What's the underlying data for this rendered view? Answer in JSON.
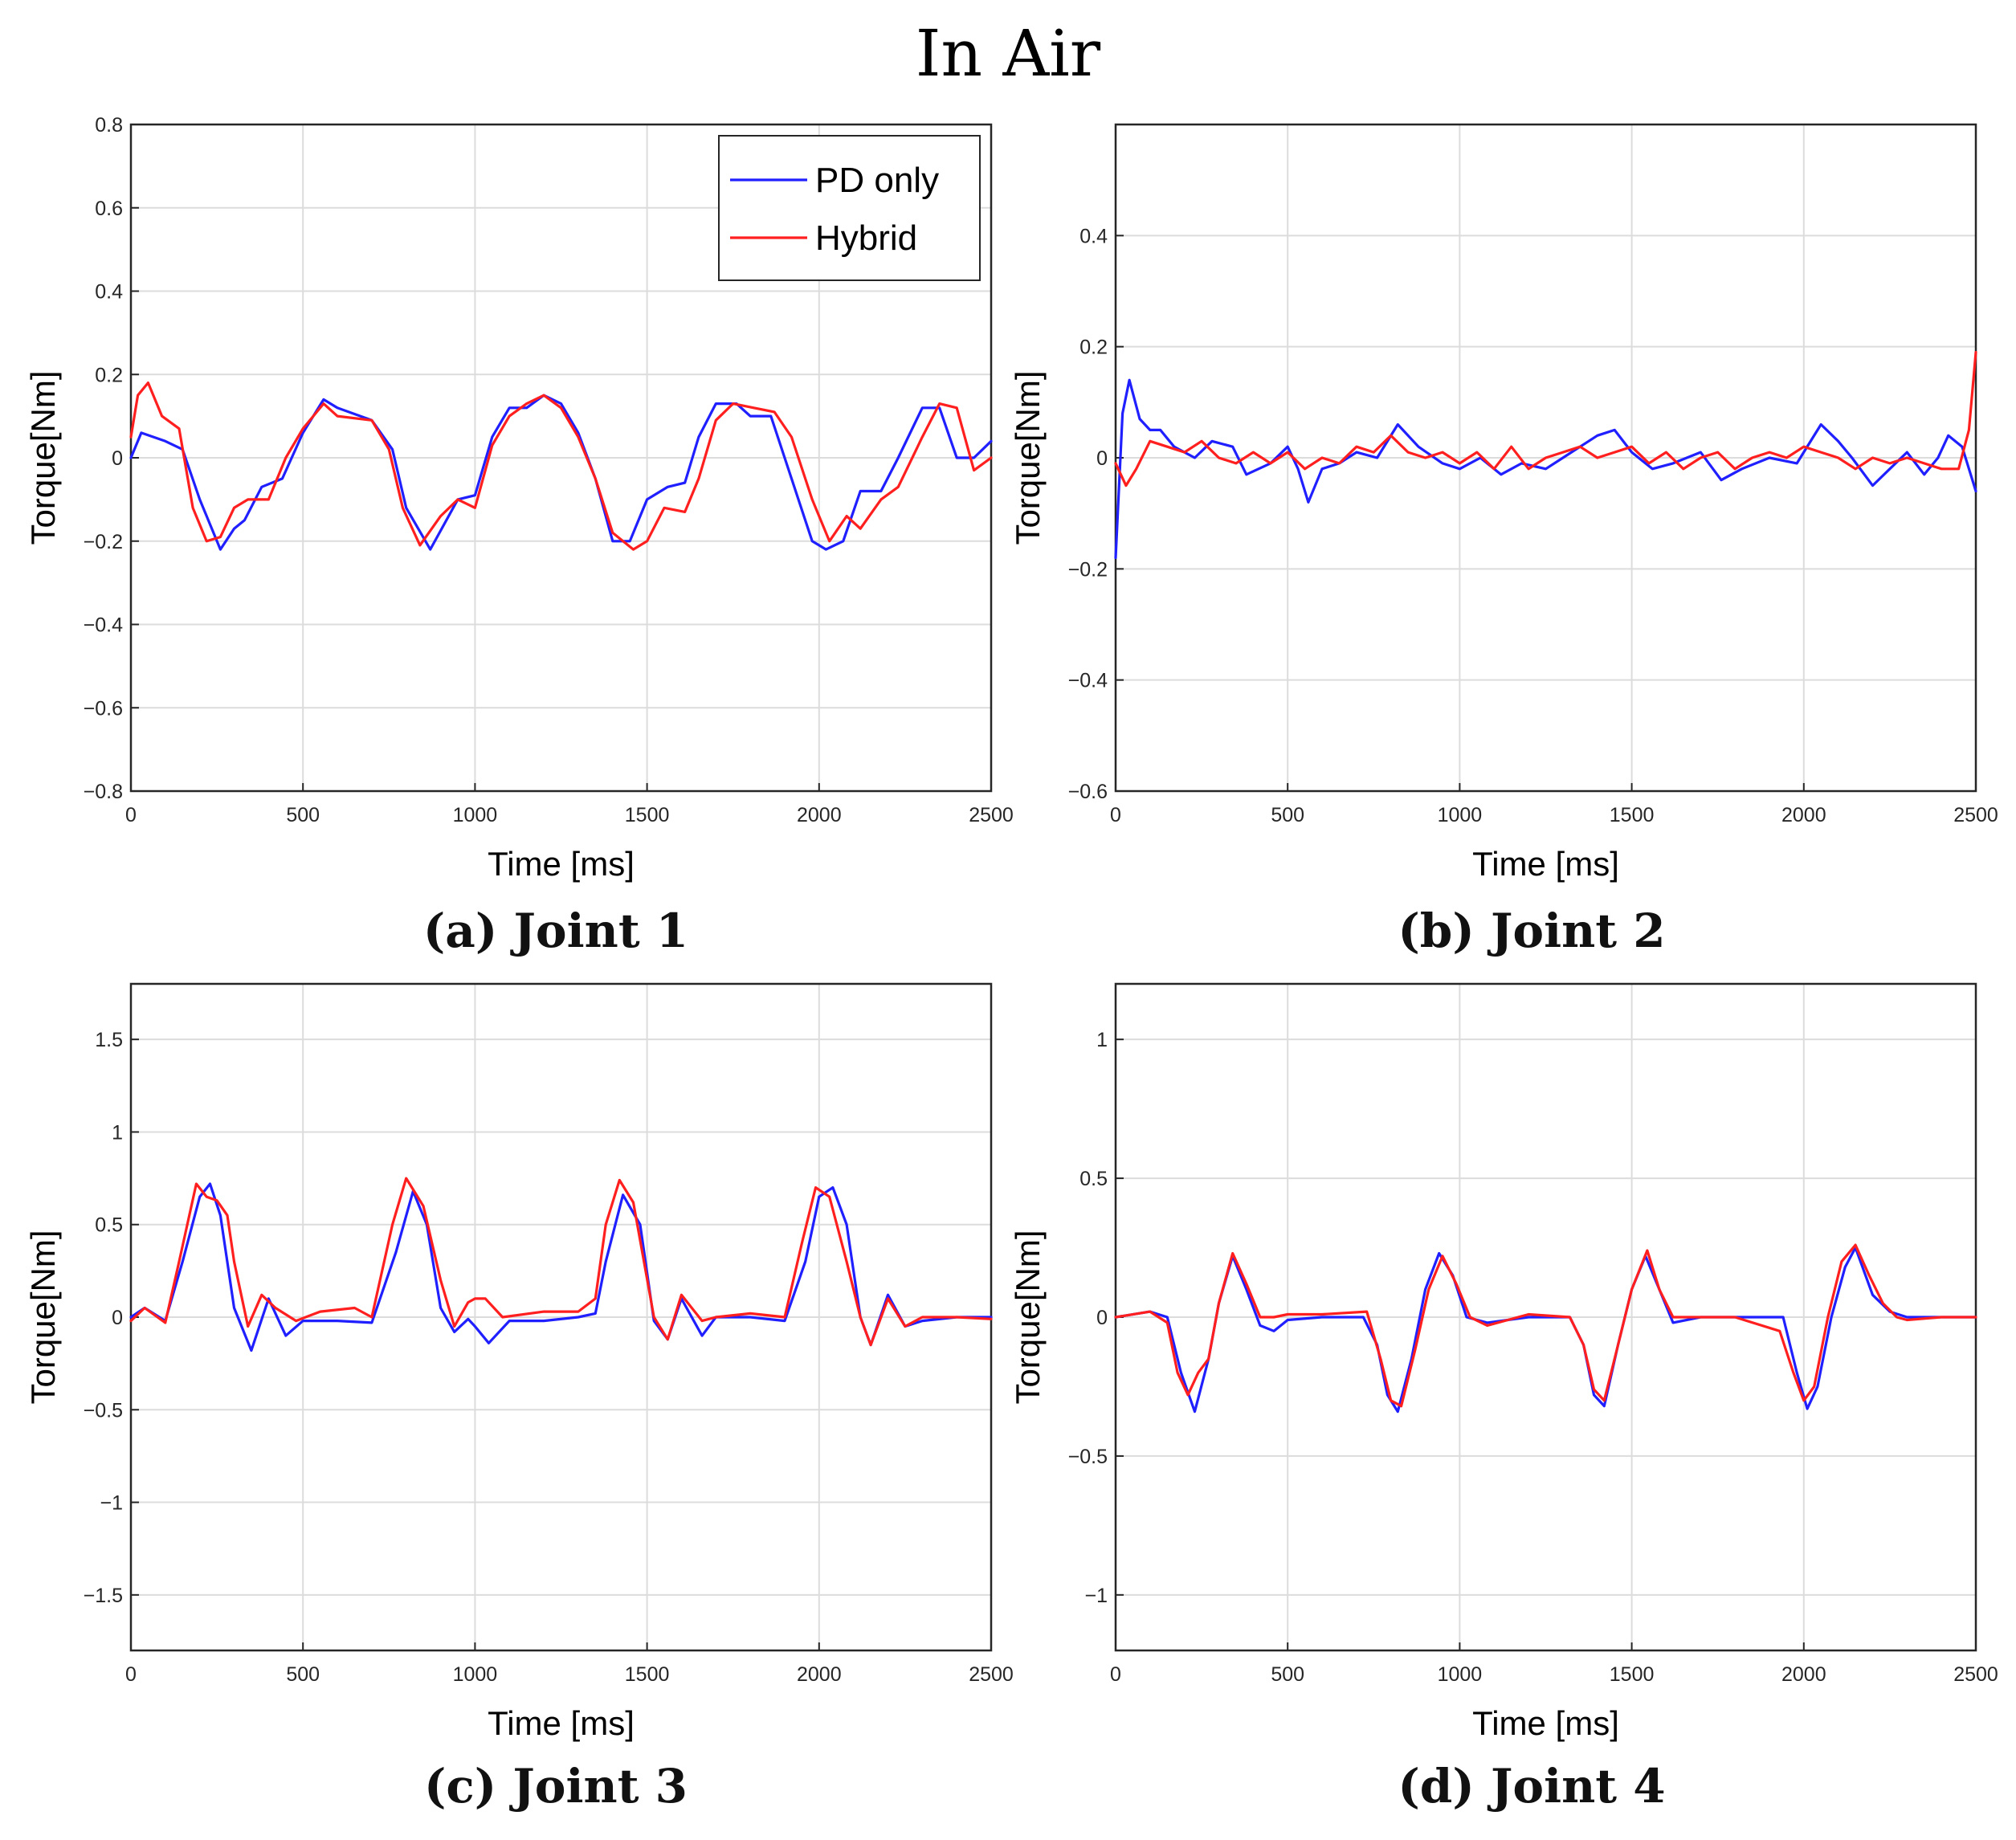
{
  "figure_title": "In Air",
  "captions": [
    "(a) Joint 1",
    "(b) Joint 2",
    "(c) Joint 3",
    "(d) Joint 4"
  ],
  "colors": {
    "pd_only": "#1f1fff",
    "hybrid": "#ff1f1f",
    "grid": "#dcdcdc"
  },
  "chart_data": [
    {
      "type": "line",
      "title": "",
      "caption": "(a) Joint 1",
      "xlabel": "Time [ms]",
      "ylabel": "Torque[Nm]",
      "xlim": [
        0,
        2500
      ],
      "ylim": [
        -0.8,
        0.8
      ],
      "xticks": [
        0,
        500,
        1000,
        1500,
        2000,
        2500
      ],
      "yticks": [
        -0.8,
        -0.6,
        -0.4,
        -0.2,
        0,
        0.2,
        0.4,
        0.6,
        0.8
      ],
      "ytick_labels": [
        "−0.8",
        "−0.6",
        "−0.4",
        "−0.2",
        "0",
        "0.2",
        "0.4",
        "0.6",
        "0.8"
      ],
      "legend": {
        "location": "top-right",
        "entries": [
          "PD only",
          "Hybrid"
        ]
      },
      "series": [
        {
          "name": "PD only",
          "color": "#1f1fff",
          "x": [
            0,
            30,
            100,
            150,
            200,
            260,
            300,
            330,
            380,
            440,
            500,
            560,
            600,
            700,
            760,
            800,
            870,
            950,
            1000,
            1050,
            1100,
            1150,
            1200,
            1250,
            1300,
            1350,
            1400,
            1450,
            1500,
            1560,
            1610,
            1650,
            1700,
            1760,
            1800,
            1860,
            1920,
            1980,
            2020,
            2070,
            2120,
            2180,
            2230,
            2300,
            2350,
            2400,
            2450,
            2500
          ],
          "y": [
            0.0,
            0.06,
            0.04,
            0.02,
            -0.1,
            -0.22,
            -0.17,
            -0.15,
            -0.07,
            -0.05,
            0.06,
            0.14,
            0.12,
            0.09,
            0.02,
            -0.12,
            -0.22,
            -0.1,
            -0.09,
            0.05,
            0.12,
            0.12,
            0.15,
            0.13,
            0.06,
            -0.05,
            -0.2,
            -0.2,
            -0.1,
            -0.07,
            -0.06,
            0.05,
            0.13,
            0.13,
            0.1,
            0.1,
            -0.05,
            -0.2,
            -0.22,
            -0.2,
            -0.08,
            -0.08,
            0.0,
            0.12,
            0.12,
            0.0,
            0.0,
            0.04
          ]
        },
        {
          "name": "Hybrid",
          "color": "#ff1f1f",
          "x": [
            0,
            20,
            50,
            90,
            140,
            180,
            220,
            260,
            300,
            340,
            400,
            450,
            500,
            560,
            600,
            700,
            750,
            790,
            840,
            900,
            950,
            1000,
            1050,
            1100,
            1150,
            1200,
            1250,
            1300,
            1350,
            1400,
            1460,
            1500,
            1550,
            1610,
            1650,
            1700,
            1750,
            1810,
            1870,
            1920,
            1980,
            2030,
            2080,
            2120,
            2180,
            2230,
            2300,
            2350,
            2400,
            2450,
            2500
          ],
          "y": [
            0.05,
            0.15,
            0.18,
            0.1,
            0.07,
            -0.12,
            -0.2,
            -0.19,
            -0.12,
            -0.1,
            -0.1,
            0.0,
            0.07,
            0.13,
            0.1,
            0.09,
            0.02,
            -0.12,
            -0.21,
            -0.14,
            -0.1,
            -0.12,
            0.03,
            0.1,
            0.13,
            0.15,
            0.12,
            0.05,
            -0.05,
            -0.18,
            -0.22,
            -0.2,
            -0.12,
            -0.13,
            -0.05,
            0.09,
            0.13,
            0.12,
            0.11,
            0.05,
            -0.1,
            -0.2,
            -0.14,
            -0.17,
            -0.1,
            -0.07,
            0.05,
            0.13,
            0.12,
            -0.03,
            0.0
          ]
        }
      ]
    },
    {
      "type": "line",
      "title": "",
      "caption": "(b) Joint 2",
      "xlabel": "Time [ms]",
      "ylabel": "Torque[Nm]",
      "xlim": [
        0,
        2500
      ],
      "ylim": [
        -0.6,
        0.6
      ],
      "xticks": [
        0,
        500,
        1000,
        1500,
        2000,
        2500
      ],
      "yticks": [
        -0.6,
        -0.4,
        -0.2,
        0,
        0.2,
        0.4
      ],
      "ytick_labels": [
        "−0.6",
        "−0.4",
        "−0.2",
        "0",
        "0.2",
        "0.4"
      ],
      "legend": null,
      "series": [
        {
          "name": "PD only",
          "color": "#1f1fff",
          "x": [
            0,
            20,
            40,
            70,
            100,
            130,
            170,
            230,
            280,
            340,
            380,
            450,
            500,
            530,
            560,
            600,
            650,
            700,
            760,
            820,
            880,
            950,
            1000,
            1060,
            1120,
            1180,
            1250,
            1300,
            1350,
            1400,
            1450,
            1500,
            1560,
            1620,
            1700,
            1760,
            1820,
            1900,
            1980,
            2050,
            2100,
            2140,
            2200,
            2250,
            2300,
            2350,
            2390,
            2420,
            2460,
            2500
          ],
          "y": [
            -0.18,
            0.08,
            0.14,
            0.07,
            0.05,
            0.05,
            0.02,
            0.0,
            0.03,
            0.02,
            -0.03,
            -0.01,
            0.02,
            -0.02,
            -0.08,
            -0.02,
            -0.01,
            0.01,
            0.0,
            0.06,
            0.02,
            -0.01,
            -0.02,
            0.0,
            -0.03,
            -0.01,
            -0.02,
            0.0,
            0.02,
            0.04,
            0.05,
            0.01,
            -0.02,
            -0.01,
            0.01,
            -0.04,
            -0.02,
            0.0,
            -0.01,
            0.06,
            0.03,
            0.0,
            -0.05,
            -0.02,
            0.01,
            -0.03,
            0.0,
            0.04,
            0.02,
            -0.06
          ]
        },
        {
          "name": "Hybrid",
          "color": "#ff1f1f",
          "x": [
            0,
            30,
            60,
            100,
            150,
            200,
            250,
            300,
            350,
            400,
            450,
            500,
            550,
            600,
            650,
            700,
            750,
            800,
            850,
            900,
            950,
            1000,
            1050,
            1100,
            1150,
            1200,
            1250,
            1300,
            1350,
            1400,
            1450,
            1500,
            1550,
            1600,
            1650,
            1700,
            1750,
            1800,
            1850,
            1900,
            1950,
            2000,
            2050,
            2100,
            2150,
            2200,
            2250,
            2300,
            2350,
            2400,
            2450,
            2480,
            2500
          ],
          "y": [
            -0.01,
            -0.05,
            -0.02,
            0.03,
            0.02,
            0.01,
            0.03,
            0.0,
            -0.01,
            0.01,
            -0.01,
            0.01,
            -0.02,
            0.0,
            -0.01,
            0.02,
            0.01,
            0.04,
            0.01,
            0.0,
            0.01,
            -0.01,
            0.01,
            -0.02,
            0.02,
            -0.02,
            0.0,
            0.01,
            0.02,
            0.0,
            0.01,
            0.02,
            -0.01,
            0.01,
            -0.02,
            0.0,
            0.01,
            -0.02,
            0.0,
            0.01,
            0.0,
            0.02,
            0.01,
            0.0,
            -0.02,
            0.0,
            -0.01,
            0.0,
            -0.01,
            -0.02,
            -0.02,
            0.05,
            0.19
          ]
        }
      ]
    },
    {
      "type": "line",
      "title": "",
      "caption": "(c) Joint 3",
      "xlabel": "Time [ms]",
      "ylabel": "Torque[Nm]",
      "xlim": [
        0,
        2500
      ],
      "ylim": [
        -1.8,
        1.8
      ],
      "xticks": [
        0,
        500,
        1000,
        1500,
        2000,
        2500
      ],
      "yticks": [
        -1.5,
        -1,
        -0.5,
        0,
        0.5,
        1,
        1.5
      ],
      "ytick_labels": [
        "−1.5",
        "−1",
        "−0.5",
        "0",
        "0.5",
        "1",
        "1.5"
      ],
      "legend": null,
      "series": [
        {
          "name": "PD only",
          "color": "#1f1fff",
          "x": [
            0,
            40,
            100,
            150,
            200,
            230,
            260,
            300,
            350,
            400,
            450,
            500,
            600,
            700,
            770,
            820,
            860,
            900,
            940,
            980,
            1000,
            1040,
            1100,
            1200,
            1300,
            1350,
            1380,
            1430,
            1480,
            1520,
            1560,
            1600,
            1660,
            1700,
            1800,
            1900,
            1960,
            2000,
            2040,
            2080,
            2120,
            2150,
            2200,
            2250,
            2300,
            2400,
            2500
          ],
          "y": [
            0.0,
            0.05,
            -0.02,
            0.3,
            0.65,
            0.72,
            0.55,
            0.05,
            -0.18,
            0.1,
            -0.1,
            -0.02,
            -0.02,
            -0.03,
            0.35,
            0.68,
            0.5,
            0.05,
            -0.08,
            -0.01,
            -0.05,
            -0.14,
            -0.02,
            -0.02,
            0.0,
            0.02,
            0.3,
            0.66,
            0.5,
            -0.02,
            -0.12,
            0.1,
            -0.1,
            0.0,
            0.0,
            -0.02,
            0.3,
            0.65,
            0.7,
            0.5,
            0.0,
            -0.15,
            0.12,
            -0.05,
            -0.02,
            0.0,
            0.0
          ]
        },
        {
          "name": "Hybrid",
          "color": "#ff1f1f",
          "x": [
            0,
            40,
            100,
            140,
            190,
            220,
            250,
            280,
            300,
            340,
            380,
            420,
            480,
            550,
            650,
            700,
            760,
            800,
            850,
            900,
            940,
            980,
            1000,
            1030,
            1080,
            1200,
            1300,
            1350,
            1380,
            1420,
            1460,
            1520,
            1560,
            1600,
            1660,
            1700,
            1800,
            1900,
            1950,
            1990,
            2030,
            2080,
            2120,
            2150,
            2200,
            2250,
            2300,
            2400,
            2500
          ],
          "y": [
            -0.02,
            0.05,
            -0.03,
            0.3,
            0.72,
            0.65,
            0.63,
            0.55,
            0.3,
            -0.05,
            0.12,
            0.05,
            -0.02,
            0.03,
            0.05,
            0.0,
            0.5,
            0.75,
            0.6,
            0.2,
            -0.05,
            0.08,
            0.1,
            0.1,
            0.0,
            0.03,
            0.03,
            0.1,
            0.5,
            0.74,
            0.62,
            0.0,
            -0.12,
            0.12,
            -0.02,
            0.0,
            0.02,
            0.0,
            0.4,
            0.7,
            0.65,
            0.3,
            0.0,
            -0.15,
            0.1,
            -0.05,
            0.0,
            0.0,
            -0.01
          ]
        }
      ]
    },
    {
      "type": "line",
      "title": "",
      "caption": "(d) Joint 4",
      "xlabel": "Time [ms]",
      "ylabel": "Torque[Nm]",
      "xlim": [
        0,
        2500
      ],
      "ylim": [
        -1.2,
        1.2
      ],
      "xticks": [
        0,
        500,
        1000,
        1500,
        2000,
        2500
      ],
      "yticks": [
        -1,
        -0.5,
        0,
        0.5,
        1
      ],
      "ytick_labels": [
        "−1",
        "−0.5",
        "0",
        "0.5",
        "1"
      ],
      "legend": null,
      "series": [
        {
          "name": "PD only",
          "color": "#1f1fff",
          "x": [
            0,
            100,
            150,
            190,
            230,
            270,
            300,
            340,
            380,
            420,
            460,
            500,
            600,
            720,
            760,
            790,
            820,
            860,
            900,
            940,
            980,
            1020,
            1080,
            1200,
            1320,
            1360,
            1390,
            1420,
            1460,
            1500,
            1540,
            1580,
            1620,
            1700,
            1800,
            1940,
            1980,
            2010,
            2040,
            2080,
            2120,
            2150,
            2200,
            2250,
            2300,
            2400,
            2500
          ],
          "y": [
            0.0,
            0.02,
            0.0,
            -0.2,
            -0.34,
            -0.15,
            0.05,
            0.22,
            0.1,
            -0.03,
            -0.05,
            -0.01,
            0.0,
            0.0,
            -0.1,
            -0.28,
            -0.34,
            -0.15,
            0.1,
            0.23,
            0.15,
            0.0,
            -0.02,
            0.0,
            0.0,
            -0.1,
            -0.28,
            -0.32,
            -0.1,
            0.1,
            0.22,
            0.1,
            -0.02,
            0.0,
            0.0,
            0.0,
            -0.2,
            -0.33,
            -0.25,
            0.0,
            0.18,
            0.25,
            0.08,
            0.02,
            0.0,
            0.0,
            0.0
          ]
        },
        {
          "name": "Hybrid",
          "color": "#ff1f1f",
          "x": [
            0,
            100,
            150,
            180,
            210,
            240,
            270,
            300,
            340,
            380,
            420,
            460,
            500,
            600,
            730,
            770,
            800,
            830,
            870,
            910,
            950,
            990,
            1030,
            1080,
            1200,
            1320,
            1360,
            1390,
            1420,
            1460,
            1500,
            1545,
            1580,
            1620,
            1700,
            1800,
            1930,
            1970,
            2000,
            2030,
            2070,
            2110,
            2150,
            2190,
            2230,
            2270,
            2300,
            2400,
            2500
          ],
          "y": [
            0.0,
            0.02,
            -0.02,
            -0.2,
            -0.28,
            -0.2,
            -0.15,
            0.05,
            0.23,
            0.12,
            0.0,
            0.0,
            0.01,
            0.01,
            0.02,
            -0.15,
            -0.3,
            -0.32,
            -0.12,
            0.1,
            0.22,
            0.12,
            0.0,
            -0.03,
            0.01,
            0.0,
            -0.1,
            -0.26,
            -0.3,
            -0.1,
            0.1,
            0.24,
            0.1,
            0.0,
            0.0,
            0.0,
            -0.05,
            -0.2,
            -0.3,
            -0.25,
            0.0,
            0.2,
            0.26,
            0.15,
            0.05,
            0.0,
            -0.01,
            0.0,
            0.0
          ]
        }
      ]
    }
  ]
}
